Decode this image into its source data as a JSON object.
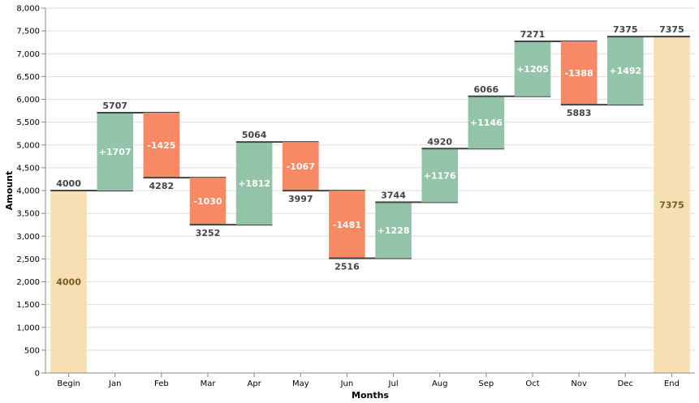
{
  "chart_data": {
    "type": "bar",
    "subtype": "waterfall",
    "categories": [
      "Begin",
      "Jan",
      "Feb",
      "Mar",
      "Apr",
      "May",
      "Jun",
      "Jul",
      "Aug",
      "Sep",
      "Oct",
      "Nov",
      "Dec",
      "End"
    ],
    "deltas": [
      4000,
      1707,
      -1425,
      -1030,
      1812,
      -1067,
      -1481,
      1228,
      1176,
      1146,
      1205,
      -1388,
      1492,
      7375
    ],
    "totals": [
      4000,
      5707,
      4282,
      3252,
      5064,
      3997,
      2516,
      3744,
      4920,
      6066,
      7271,
      5883,
      7375,
      7375
    ],
    "bar_labels": [
      "4000",
      "+1707",
      "-1425",
      "-1030",
      "+1812",
      "-1067",
      "-1481",
      "+1228",
      "+1176",
      "+1146",
      "+1205",
      "-1388",
      "+1492",
      "7375"
    ],
    "total_labels": [
      "4000",
      "5707",
      "4282",
      "3252",
      "5064",
      "3997",
      "2516",
      "3744",
      "4920",
      "6066",
      "7271",
      "5883",
      "7375",
      "7375"
    ],
    "kinds": [
      "total",
      "increase",
      "decrease",
      "decrease",
      "increase",
      "decrease",
      "decrease",
      "increase",
      "increase",
      "increase",
      "increase",
      "decrease",
      "increase",
      "total"
    ],
    "xlabel": "Months",
    "ylabel": "Amount",
    "ylim": [
      0,
      8000
    ],
    "yticks": [
      0,
      500,
      1000,
      1500,
      2000,
      2500,
      3000,
      3500,
      4000,
      4500,
      5000,
      5500,
      6000,
      6500,
      7000,
      7500,
      8000
    ],
    "ytick_labels": [
      "0",
      "500",
      "1,000",
      "1,500",
      "2,000",
      "2,500",
      "3,000",
      "3,500",
      "4,000",
      "4,500",
      "5,000",
      "5,500",
      "6,000",
      "6,500",
      "7,000",
      "7,500",
      "8,000"
    ],
    "grid": true,
    "colors": {
      "total": "#f7dfb4",
      "increase": "#93c4aa",
      "decrease": "#f78a64",
      "connector": "#444444",
      "grid": "#dddddd"
    }
  }
}
